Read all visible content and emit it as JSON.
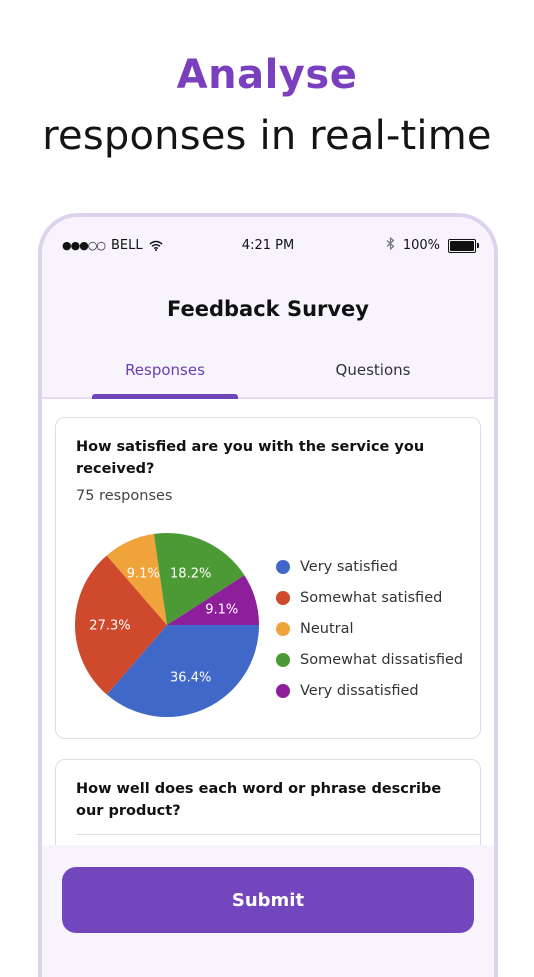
{
  "hero": {
    "title": "Analyse",
    "subtitle": "responses in real-time"
  },
  "status_bar": {
    "signal": "●●●○○",
    "carrier": "BELL",
    "time": "4:21 PM",
    "battery": "100%",
    "icons": [
      "wifi-icon",
      "bluetooth-icon",
      "battery-icon"
    ]
  },
  "app": {
    "title": "Feedback Survey",
    "tabs": [
      {
        "label": "Responses",
        "active": true
      },
      {
        "label": "Questions",
        "active": false
      }
    ]
  },
  "questions": [
    {
      "title": "How satisfied are you with the service you received?",
      "count_text": "75 responses"
    },
    {
      "title": "How well does each word or phrase describe our product?"
    }
  ],
  "chart_data": {
    "type": "pie",
    "categories": [
      "Very satisfied",
      "Somewhat satisfied",
      "Neutral",
      "Somewhat dissatisfied",
      "Very dissatisfied"
    ],
    "values": [
      36.4,
      27.3,
      9.1,
      18.2,
      9.1
    ],
    "labels": [
      "36.4%",
      "27.3%",
      "9.1%",
      "18.2%",
      "9.1%"
    ],
    "colors": [
      "#3f68c9",
      "#cf4a2c",
      "#f0a23b",
      "#4c9a35",
      "#8e1f9b"
    ],
    "legend_position": "right"
  },
  "footer": {
    "submit_label": "Submit"
  },
  "theme": {
    "accent": "#7446bd",
    "tab_active": "#6b3db2"
  }
}
